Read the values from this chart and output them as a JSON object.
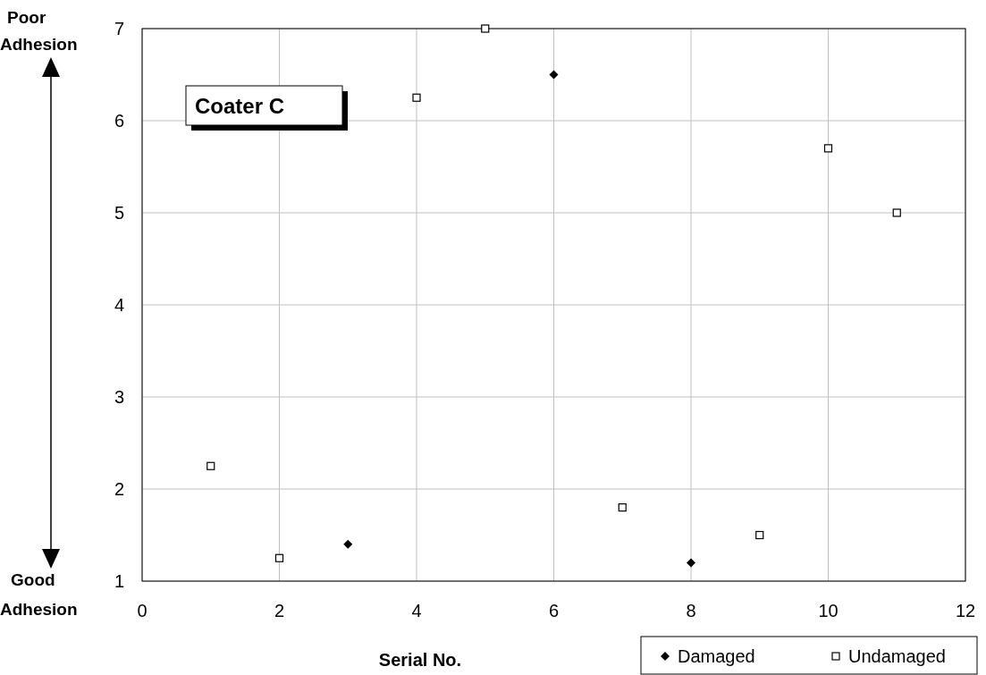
{
  "chart_data": {
    "type": "scatter",
    "xlabel": "Serial No.",
    "annotations": [
      "Coater C",
      "Poor Adhesion",
      "Good Adhesion"
    ],
    "xlim": [
      0,
      12
    ],
    "xticks": [
      0,
      2,
      4,
      6,
      8,
      10,
      12
    ],
    "ylim": [
      1,
      7
    ],
    "yticks": [
      1,
      2,
      3,
      4,
      5,
      6,
      7
    ],
    "grid": true,
    "legend": "bottom right",
    "series": [
      {
        "name": "Damaged",
        "color": "#000000",
        "marker": "diamond",
        "x": [
          3,
          6,
          8
        ],
        "values": [
          1.4,
          6.5,
          1.2
        ]
      },
      {
        "name": "Undamaged",
        "color": "#000000",
        "marker": "square",
        "x": [
          1,
          2,
          4,
          5,
          7,
          9,
          10,
          11
        ],
        "values": [
          2.25,
          1.25,
          6.25,
          7,
          1.8,
          1.5,
          5.7,
          5
        ]
      }
    ]
  }
}
